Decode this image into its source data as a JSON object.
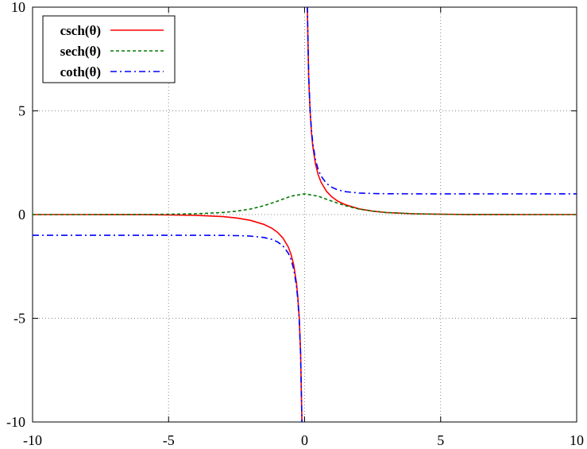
{
  "chart_data": {
    "type": "line",
    "title": "",
    "xlabel": "",
    "ylabel": "",
    "xlim": [
      -10,
      10
    ],
    "ylim": [
      -10,
      10
    ],
    "x_ticks": [
      "-10",
      "-5",
      "0",
      "5",
      "10"
    ],
    "y_ticks": [
      "-10",
      "-5",
      "0",
      "5",
      "10"
    ],
    "grid": true,
    "legend_position": "top-left",
    "series": [
      {
        "name": "csch(θ)",
        "color": "#ff0000",
        "style": "solid",
        "x": [
          -10,
          -8,
          -6,
          -5,
          -4,
          -3,
          -2.5,
          -2,
          -1.5,
          -1.2,
          -1,
          -0.8,
          -0.6,
          -0.5,
          -0.4,
          -0.3,
          -0.25,
          -0.2,
          -0.15,
          -0.1,
          0.1,
          0.15,
          0.2,
          0.25,
          0.3,
          0.4,
          0.5,
          0.6,
          0.8,
          1,
          1.2,
          1.5,
          2,
          2.5,
          3,
          4,
          5,
          6,
          8,
          10
        ],
        "y": [
          -0.0001,
          -0.0007,
          -0.005,
          -0.0135,
          -0.0366,
          -0.0998,
          -0.1652,
          -0.2757,
          -0.4696,
          -0.6624,
          -0.8509,
          -1.1259,
          -1.5707,
          -1.919,
          -2.4346,
          -3.2838,
          -3.9588,
          -4.9668,
          -6.6164,
          -9.9834,
          9.9834,
          6.6164,
          4.9668,
          3.9588,
          3.2838,
          2.4346,
          1.919,
          1.5707,
          1.1259,
          0.8509,
          0.6624,
          0.4696,
          0.2757,
          0.1652,
          0.0998,
          0.0366,
          0.0135,
          0.005,
          0.0007,
          0.0001
        ]
      },
      {
        "name": "sech(θ)",
        "color": "#007a00",
        "style": "dashed",
        "x": [
          -10,
          -8,
          -6,
          -5,
          -4,
          -3,
          -2.5,
          -2,
          -1.5,
          -1,
          -0.5,
          0,
          0.5,
          1,
          1.5,
          2,
          2.5,
          3,
          4,
          5,
          6,
          8,
          10
        ],
        "y": [
          0.0001,
          0.0007,
          0.005,
          0.0135,
          0.0366,
          0.0993,
          0.1631,
          0.2658,
          0.4251,
          0.6481,
          0.8868,
          1,
          0.8868,
          0.6481,
          0.4251,
          0.2658,
          0.1631,
          0.0993,
          0.0366,
          0.0135,
          0.005,
          0.0007,
          0.0001
        ]
      },
      {
        "name": "coth(θ)",
        "color": "#0000ff",
        "style": "dash-dot",
        "x": [
          -10,
          -8,
          -6,
          -5,
          -4,
          -3,
          -2.5,
          -2,
          -1.5,
          -1.2,
          -1,
          -0.8,
          -0.6,
          -0.5,
          -0.4,
          -0.3,
          -0.25,
          -0.2,
          -0.15,
          -0.1,
          0.1,
          0.15,
          0.2,
          0.25,
          0.3,
          0.4,
          0.5,
          0.6,
          0.8,
          1,
          1.2,
          1.5,
          2,
          2.5,
          3,
          4,
          5,
          6,
          8,
          10
        ],
        "y": [
          -1,
          -1,
          -1,
          -1.0001,
          -1.0007,
          -1.005,
          -1.0135,
          -1.0373,
          -1.1048,
          -1.1995,
          -1.313,
          -1.5059,
          -1.862,
          -2.164,
          -2.6319,
          -3.4327,
          -4.083,
          -5.0665,
          -6.6919,
          -10.0333,
          10.0333,
          6.6919,
          5.0665,
          4.083,
          3.4327,
          2.6319,
          2.164,
          1.862,
          1.5059,
          1.313,
          1.1995,
          1.1048,
          1.0373,
          1.0135,
          1.005,
          1.0007,
          1.0001,
          1,
          1,
          1
        ]
      }
    ]
  }
}
